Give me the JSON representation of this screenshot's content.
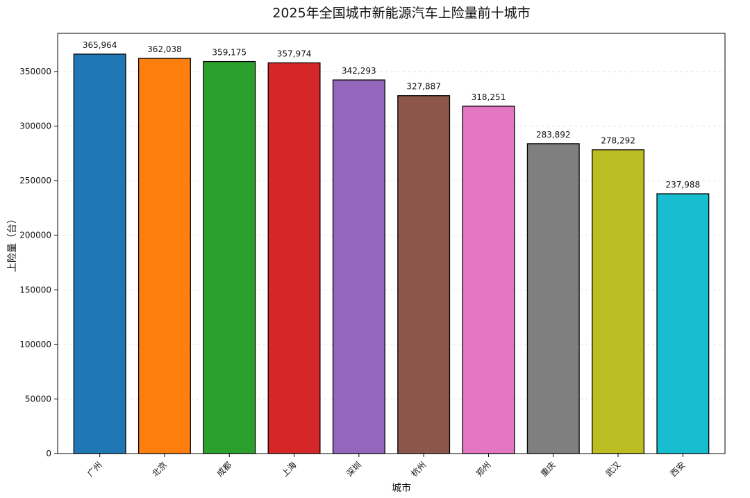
{
  "chart_data": {
    "type": "bar",
    "title": "2025年全国城市新能源汽车上险量前十城市",
    "xlabel": "城市",
    "ylabel": "上险量（台）",
    "ylim": [
      0,
      385000
    ],
    "yticks": [
      "0",
      "50000",
      "100000",
      "150000",
      "200000",
      "250000",
      "300000",
      "350000"
    ],
    "grid": "horizontal-dashed",
    "categories": [
      "广州",
      "北京",
      "成都",
      "上海",
      "深圳",
      "杭州",
      "郑州",
      "重庆",
      "武汉",
      "西安"
    ],
    "values": [
      365964,
      362038,
      359175,
      357974,
      342293,
      327887,
      318251,
      283892,
      278292,
      237988
    ],
    "data_labels": [
      "365,964",
      "362,038",
      "359,175",
      "357,974",
      "342,293",
      "327,887",
      "318,251",
      "283,892",
      "278,292",
      "237,988"
    ],
    "colors": [
      "#1f77b4",
      "#ff7f0e",
      "#2ca02c",
      "#d62728",
      "#9467bd",
      "#8c564b",
      "#e377c2",
      "#7f7f7f",
      "#bcbd22",
      "#17becf"
    ]
  }
}
